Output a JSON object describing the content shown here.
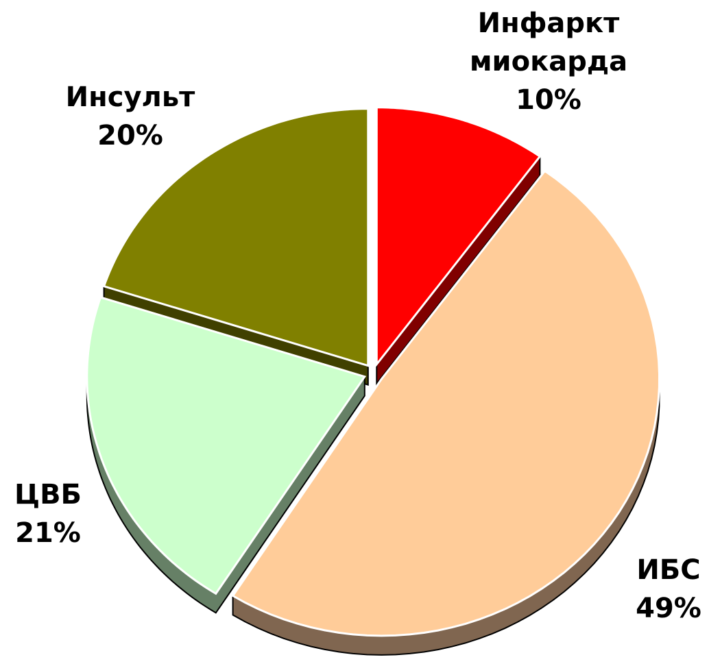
{
  "chart_data": {
    "type": "pie",
    "categories": [
      "Инфаркт миокарда",
      "ИБС",
      "ЦВБ",
      "Инсульт"
    ],
    "values": [
      10,
      49,
      21,
      20
    ],
    "value_labels": [
      "10%",
      "49%",
      "21%",
      "20%"
    ],
    "colors": [
      "#ff0000",
      "#ffcc99",
      "#ccffcc",
      "#808000"
    ],
    "side_colors": [
      "#800000",
      "#806650",
      "#668066",
      "#404000"
    ]
  }
}
